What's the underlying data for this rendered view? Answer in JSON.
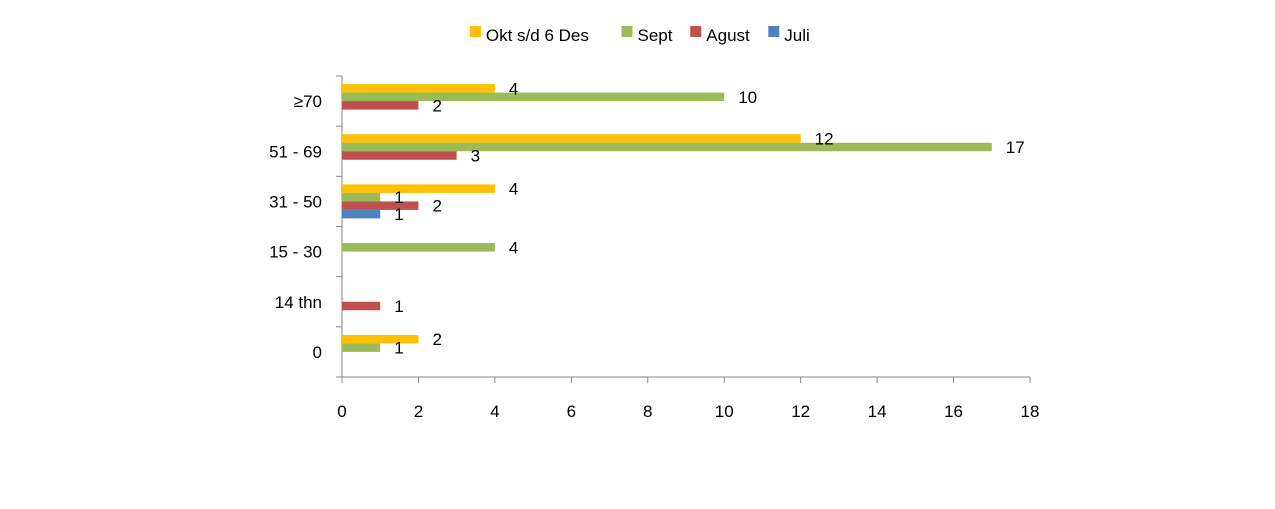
{
  "chart_data": {
    "type": "bar",
    "orientation": "horizontal",
    "categories": [
      "≥70",
      "51 - 69",
      "31 - 50",
      "15 - 30",
      "14 thn",
      "0"
    ],
    "series": [
      {
        "name": "Okt s/d 6 Des",
        "color": "#FFC000",
        "values": [
          4,
          12,
          4,
          null,
          null,
          2
        ]
      },
      {
        "name": "Sept",
        "color": "#9BBB59",
        "values": [
          10,
          17,
          1,
          4,
          null,
          1
        ]
      },
      {
        "name": "Agust",
        "color": "#C0504D",
        "values": [
          2,
          3,
          2,
          null,
          1,
          null
        ]
      },
      {
        "name": "Juli",
        "color": "#4F81BD",
        "values": [
          null,
          null,
          1,
          null,
          null,
          null
        ]
      }
    ],
    "xlim": [
      0,
      18
    ],
    "x_ticks": [
      "0",
      "2",
      "4",
      "6",
      "8",
      "10",
      "12",
      "14",
      "16",
      "18"
    ],
    "grid": false,
    "legend_position": "top",
    "data_labels": true
  }
}
